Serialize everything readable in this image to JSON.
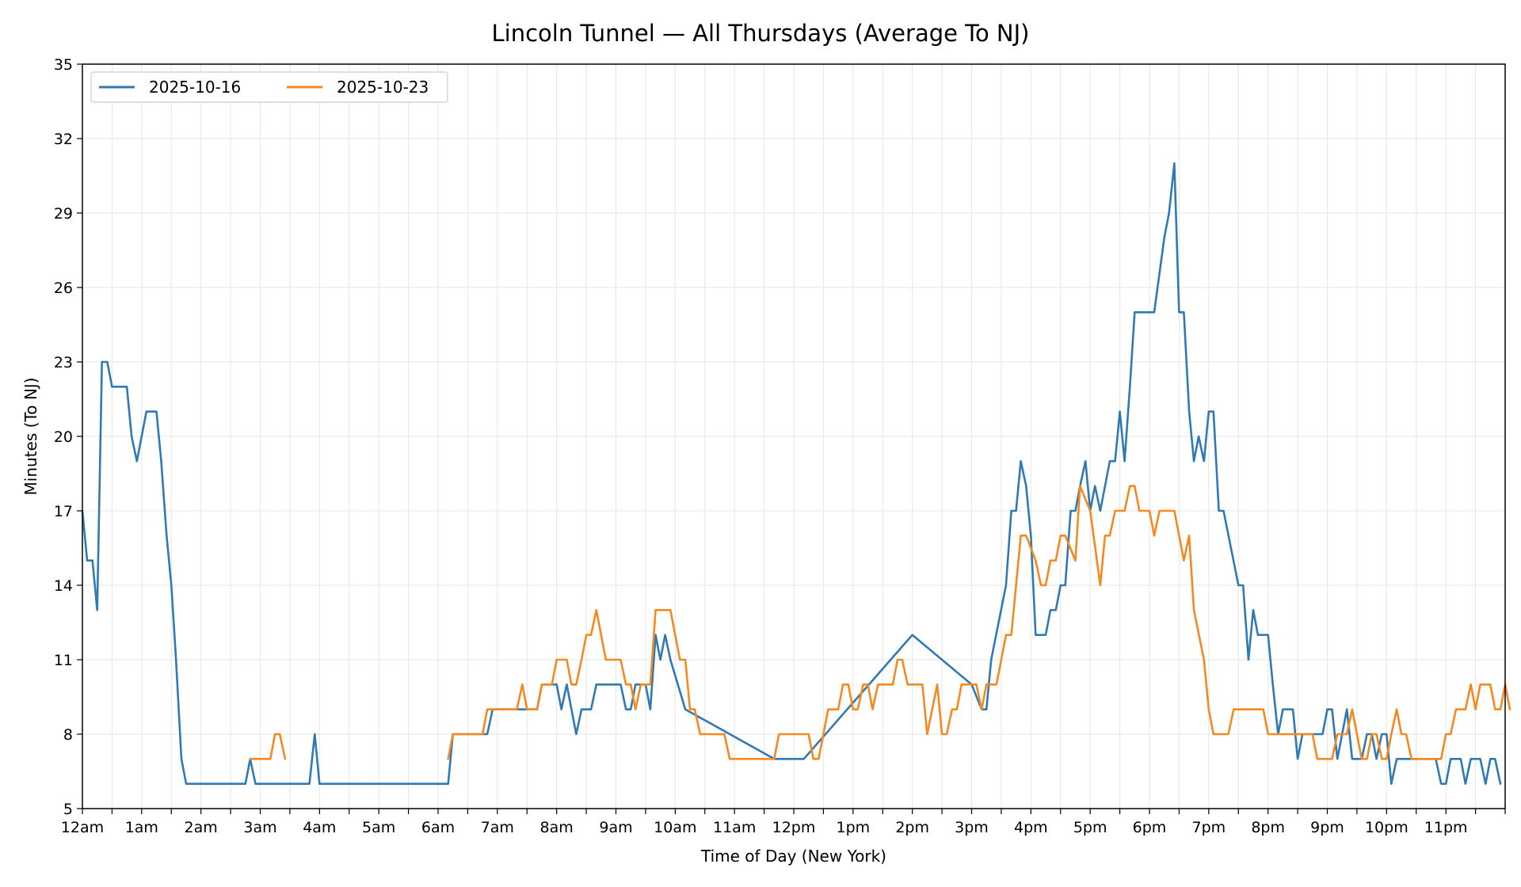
{
  "chart_data": {
    "type": "line",
    "title": "Lincoln Tunnel — All Thursdays (Average To NJ)",
    "xlabel": "Time of Day (New York)",
    "ylabel": "Minutes (To NJ)",
    "xlim": [
      0,
      24
    ],
    "ylim": [
      5,
      35
    ],
    "yticks": [
      5,
      8,
      11,
      14,
      17,
      20,
      23,
      26,
      29,
      32,
      35
    ],
    "xtick_labels": [
      "12am",
      "1am",
      "2am",
      "3am",
      "4am",
      "5am",
      "6am",
      "7am",
      "8am",
      "9am",
      "10am",
      "11am",
      "12pm",
      "1pm",
      "2pm",
      "3pm",
      "4pm",
      "5pm",
      "6pm",
      "7pm",
      "8pm",
      "9pm",
      "10pm",
      "11pm"
    ],
    "grid": true,
    "legend_position": "top-left",
    "series": [
      {
        "name": "2025-10-16",
        "color": "#2f7ab5",
        "points": [
          [
            0.0,
            17
          ],
          [
            0.08,
            15
          ],
          [
            0.17,
            15
          ],
          [
            0.25,
            13
          ],
          [
            0.33,
            23
          ],
          [
            0.42,
            23
          ],
          [
            0.5,
            22
          ],
          [
            0.58,
            22
          ],
          [
            0.67,
            22
          ],
          [
            0.75,
            22
          ],
          [
            0.83,
            20
          ],
          [
            0.92,
            19
          ],
          [
            1.0,
            20
          ],
          [
            1.08,
            21
          ],
          [
            1.17,
            21
          ],
          [
            1.25,
            21
          ],
          [
            1.33,
            19
          ],
          [
            1.42,
            16
          ],
          [
            1.5,
            14
          ],
          [
            1.58,
            11
          ],
          [
            1.67,
            7
          ],
          [
            1.75,
            6
          ],
          [
            2.0,
            6
          ],
          [
            2.5,
            6
          ],
          [
            2.75,
            6
          ],
          [
            2.83,
            7
          ],
          [
            2.92,
            6
          ],
          [
            3.5,
            6
          ],
          [
            3.83,
            6
          ],
          [
            3.92,
            8
          ],
          [
            4.0,
            6
          ],
          [
            5.0,
            6
          ],
          [
            6.0,
            6
          ],
          [
            6.17,
            6
          ],
          [
            6.25,
            8
          ],
          [
            6.83,
            8
          ],
          [
            6.92,
            9
          ],
          [
            7.5,
            9
          ],
          [
            7.67,
            9
          ],
          [
            7.75,
            10
          ],
          [
            8.0,
            10
          ],
          [
            8.08,
            9
          ],
          [
            8.17,
            10
          ],
          [
            8.25,
            9
          ],
          [
            8.33,
            8
          ],
          [
            8.42,
            9
          ],
          [
            8.58,
            9
          ],
          [
            8.67,
            10
          ],
          [
            9.0,
            10
          ],
          [
            9.08,
            10
          ],
          [
            9.17,
            9
          ],
          [
            9.25,
            9
          ],
          [
            9.33,
            10
          ],
          [
            9.5,
            10
          ],
          [
            9.58,
            9
          ],
          [
            9.67,
            12
          ],
          [
            9.75,
            11
          ],
          [
            9.83,
            12
          ],
          [
            9.92,
            11
          ],
          [
            10.17,
            9
          ],
          [
            11.67,
            7
          ],
          [
            12.17,
            7
          ],
          [
            14.0,
            12
          ],
          [
            15.0,
            10
          ],
          [
            15.17,
            9
          ],
          [
            15.25,
            9
          ],
          [
            15.33,
            11
          ],
          [
            15.58,
            14
          ],
          [
            15.67,
            17
          ],
          [
            15.75,
            17
          ],
          [
            15.83,
            19
          ],
          [
            15.92,
            18
          ],
          [
            16.0,
            16
          ],
          [
            16.08,
            12
          ],
          [
            16.25,
            12
          ],
          [
            16.33,
            13
          ],
          [
            16.42,
            13
          ],
          [
            16.5,
            14
          ],
          [
            16.58,
            14
          ],
          [
            16.67,
            17
          ],
          [
            16.75,
            17
          ],
          [
            16.83,
            18
          ],
          [
            16.92,
            19
          ],
          [
            17.0,
            17
          ],
          [
            17.08,
            18
          ],
          [
            17.17,
            17
          ],
          [
            17.25,
            18
          ],
          [
            17.33,
            19
          ],
          [
            17.42,
            19
          ],
          [
            17.5,
            21
          ],
          [
            17.58,
            19
          ],
          [
            17.67,
            22
          ],
          [
            17.75,
            25
          ],
          [
            18.08,
            25
          ],
          [
            18.25,
            28
          ],
          [
            18.33,
            29
          ],
          [
            18.42,
            31
          ],
          [
            18.5,
            25
          ],
          [
            18.58,
            25
          ],
          [
            18.67,
            21
          ],
          [
            18.75,
            19
          ],
          [
            18.83,
            20
          ],
          [
            18.92,
            19
          ],
          [
            19.0,
            21
          ],
          [
            19.08,
            21
          ],
          [
            19.17,
            17
          ],
          [
            19.25,
            17
          ],
          [
            19.5,
            14
          ],
          [
            19.58,
            14
          ],
          [
            19.67,
            11
          ],
          [
            19.75,
            13
          ],
          [
            19.83,
            12
          ],
          [
            20.0,
            12
          ],
          [
            20.08,
            10
          ],
          [
            20.17,
            8
          ],
          [
            20.25,
            9
          ],
          [
            20.42,
            9
          ],
          [
            20.5,
            7
          ],
          [
            20.58,
            8
          ],
          [
            20.92,
            8
          ],
          [
            21.0,
            9
          ],
          [
            21.08,
            9
          ],
          [
            21.17,
            7
          ],
          [
            21.25,
            8
          ],
          [
            21.33,
            9
          ],
          [
            21.42,
            7
          ],
          [
            21.58,
            7
          ],
          [
            21.67,
            8
          ],
          [
            21.75,
            8
          ],
          [
            21.83,
            7
          ],
          [
            21.92,
            8
          ],
          [
            22.0,
            8
          ],
          [
            22.08,
            6
          ],
          [
            22.17,
            7
          ],
          [
            22.25,
            7
          ],
          [
            22.83,
            7
          ],
          [
            22.92,
            6
          ],
          [
            23.0,
            6
          ],
          [
            23.08,
            7
          ],
          [
            23.25,
            7
          ],
          [
            23.33,
            6
          ],
          [
            23.42,
            7
          ],
          [
            23.58,
            7
          ],
          [
            23.67,
            6
          ],
          [
            23.75,
            7
          ],
          [
            23.83,
            7
          ],
          [
            23.92,
            6
          ]
        ]
      },
      {
        "name": "2025-10-23",
        "color": "#f5891f",
        "points": [
          [
            2.83,
            7
          ],
          [
            3.17,
            7
          ],
          [
            3.25,
            8
          ],
          [
            3.33,
            8
          ],
          [
            3.42,
            7
          ],
          [
            null,
            null
          ],
          [
            6.17,
            7
          ],
          [
            6.25,
            8
          ],
          [
            6.75,
            8
          ],
          [
            6.83,
            9
          ],
          [
            7.33,
            9
          ],
          [
            7.42,
            10
          ],
          [
            7.5,
            9
          ],
          [
            7.67,
            9
          ],
          [
            7.75,
            10
          ],
          [
            7.92,
            10
          ],
          [
            8.0,
            11
          ],
          [
            8.17,
            11
          ],
          [
            8.25,
            10
          ],
          [
            8.33,
            10
          ],
          [
            8.42,
            11
          ],
          [
            8.5,
            12
          ],
          [
            8.58,
            12
          ],
          [
            8.67,
            13
          ],
          [
            8.75,
            12
          ],
          [
            8.83,
            11
          ],
          [
            9.08,
            11
          ],
          [
            9.17,
            10
          ],
          [
            9.25,
            10
          ],
          [
            9.33,
            9
          ],
          [
            9.42,
            10
          ],
          [
            9.58,
            10
          ],
          [
            9.67,
            13
          ],
          [
            9.92,
            13
          ],
          [
            10.0,
            12
          ],
          [
            10.08,
            11
          ],
          [
            10.17,
            11
          ],
          [
            10.25,
            9
          ],
          [
            10.33,
            9
          ],
          [
            10.42,
            8
          ],
          [
            10.83,
            8
          ],
          [
            10.92,
            7
          ],
          [
            11.58,
            7
          ],
          [
            11.67,
            7
          ],
          [
            11.75,
            8
          ],
          [
            12.25,
            8
          ],
          [
            12.33,
            7
          ],
          [
            12.42,
            7
          ],
          [
            12.58,
            9
          ],
          [
            12.75,
            9
          ],
          [
            12.83,
            10
          ],
          [
            12.92,
            10
          ],
          [
            13.0,
            9
          ],
          [
            13.08,
            9
          ],
          [
            13.17,
            10
          ],
          [
            13.25,
            10
          ],
          [
            13.33,
            9
          ],
          [
            13.42,
            10
          ],
          [
            13.67,
            10
          ],
          [
            13.75,
            11
          ],
          [
            13.83,
            11
          ],
          [
            13.92,
            10
          ],
          [
            14.17,
            10
          ],
          [
            14.25,
            8
          ],
          [
            14.42,
            10
          ],
          [
            14.5,
            8
          ],
          [
            14.58,
            8
          ],
          [
            14.67,
            9
          ],
          [
            14.75,
            9
          ],
          [
            14.83,
            10
          ],
          [
            15.0,
            10
          ],
          [
            15.08,
            10
          ],
          [
            15.17,
            9
          ],
          [
            15.25,
            10
          ],
          [
            15.42,
            10
          ],
          [
            15.58,
            12
          ],
          [
            15.67,
            12
          ],
          [
            15.83,
            16
          ],
          [
            15.92,
            16
          ],
          [
            16.08,
            15
          ],
          [
            16.17,
            14
          ],
          [
            16.25,
            14
          ],
          [
            16.33,
            15
          ],
          [
            16.42,
            15
          ],
          [
            16.5,
            16
          ],
          [
            16.58,
            16
          ],
          [
            16.75,
            15
          ],
          [
            16.83,
            18
          ],
          [
            17.0,
            17
          ],
          [
            17.17,
            14
          ],
          [
            17.25,
            16
          ],
          [
            17.33,
            16
          ],
          [
            17.42,
            17
          ],
          [
            17.58,
            17
          ],
          [
            17.67,
            18
          ],
          [
            17.75,
            18
          ],
          [
            17.83,
            17
          ],
          [
            18.0,
            17
          ],
          [
            18.08,
            16
          ],
          [
            18.17,
            17
          ],
          [
            18.42,
            17
          ],
          [
            18.58,
            15
          ],
          [
            18.67,
            16
          ],
          [
            18.75,
            13
          ],
          [
            18.92,
            11
          ],
          [
            19.0,
            9
          ],
          [
            19.08,
            8
          ],
          [
            19.33,
            8
          ],
          [
            19.42,
            9
          ],
          [
            19.92,
            9
          ],
          [
            20.0,
            8
          ],
          [
            20.75,
            8
          ],
          [
            20.83,
            7
          ],
          [
            21.08,
            7
          ],
          [
            21.17,
            8
          ],
          [
            21.33,
            8
          ],
          [
            21.42,
            9
          ],
          [
            21.5,
            8
          ],
          [
            21.58,
            7
          ],
          [
            21.67,
            7
          ],
          [
            21.75,
            8
          ],
          [
            21.83,
            8
          ],
          [
            21.92,
            7
          ],
          [
            22.0,
            7
          ],
          [
            22.08,
            8
          ],
          [
            22.17,
            9
          ],
          [
            22.25,
            8
          ],
          [
            22.33,
            8
          ],
          [
            22.42,
            7
          ],
          [
            22.92,
            7
          ],
          [
            23.0,
            8
          ],
          [
            23.08,
            8
          ],
          [
            23.17,
            9
          ],
          [
            23.33,
            9
          ],
          [
            23.42,
            10
          ],
          [
            23.5,
            9
          ],
          [
            23.58,
            10
          ],
          [
            23.75,
            10
          ],
          [
            23.83,
            9
          ],
          [
            23.92,
            9
          ],
          [
            24.0,
            10
          ],
          [
            24.08,
            9
          ]
        ]
      }
    ]
  }
}
